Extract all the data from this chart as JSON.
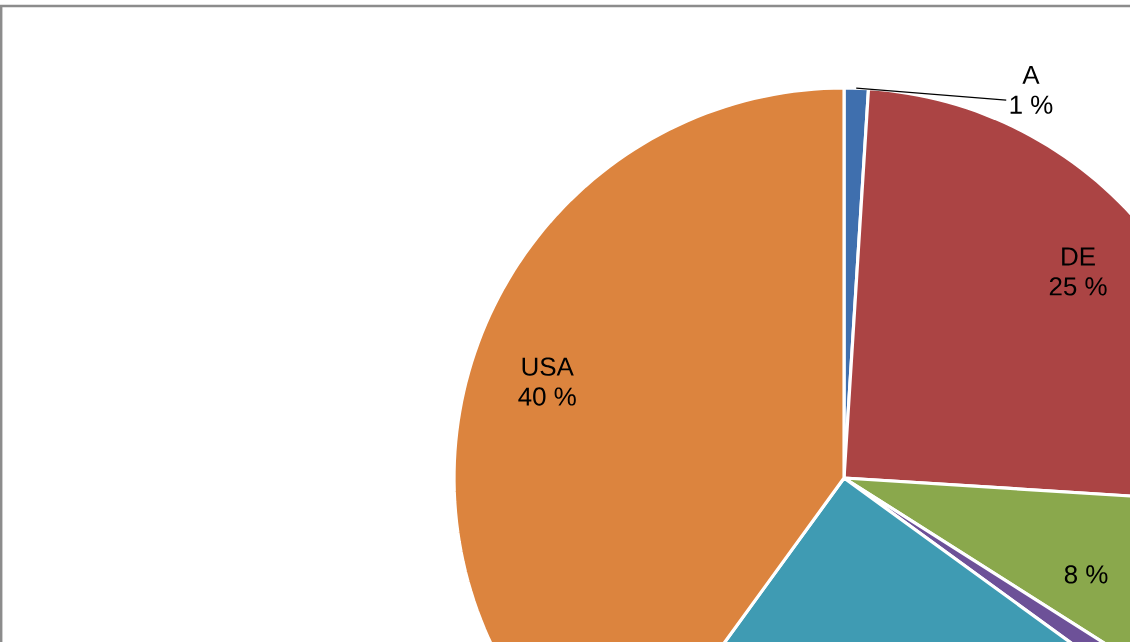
{
  "chart_data": {
    "type": "pie",
    "categories": [
      "A",
      "DE",
      null,
      null,
      null,
      "USA"
    ],
    "values": [
      1,
      25,
      8,
      1,
      25,
      40
    ],
    "colors": [
      "#3f6fae",
      "#ab4444",
      "#8aa84c",
      "#6d5198",
      "#3f9bb3",
      "#dc843e"
    ],
    "value_labels": [
      "1 %",
      "25 %",
      "8 %",
      null,
      null,
      "40 %"
    ]
  }
}
